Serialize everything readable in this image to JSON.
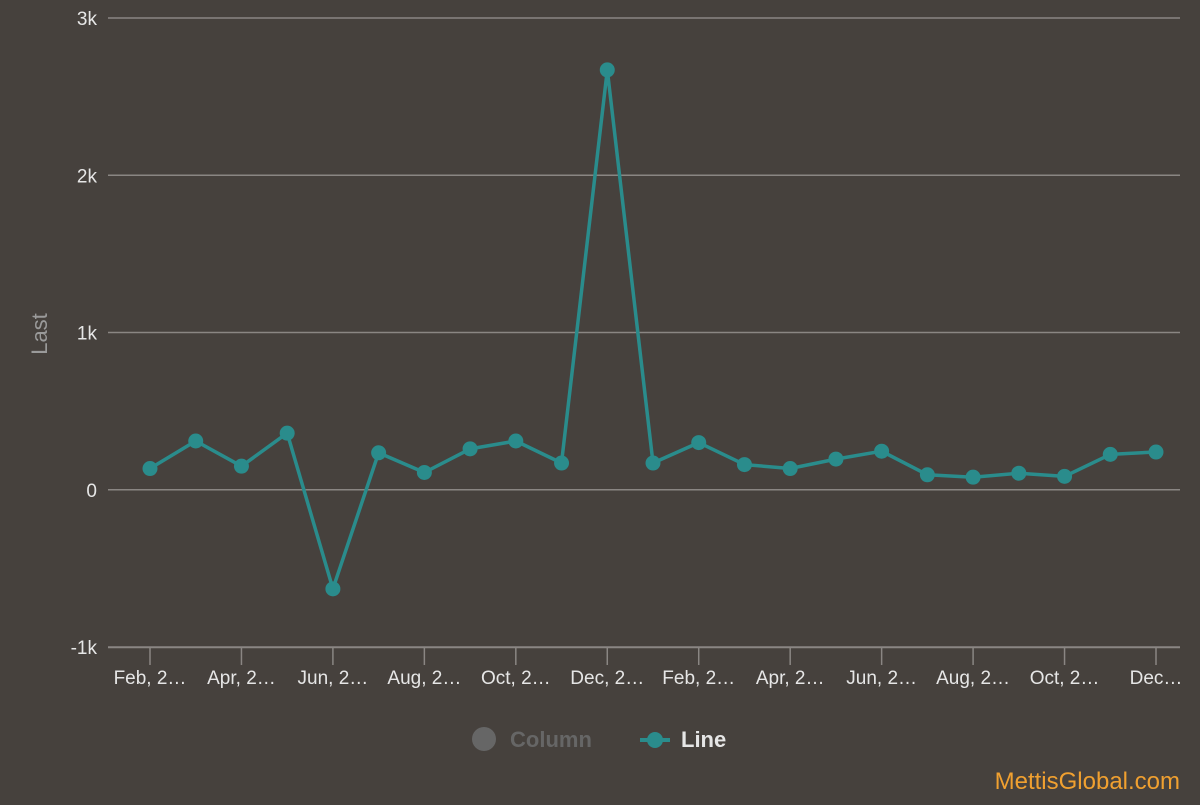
{
  "chart_data": {
    "type": "line",
    "title": "",
    "ylabel": "Last",
    "xlabel": "",
    "ylim": [
      -1000,
      3000
    ],
    "yticks": [
      -1000,
      0,
      1000,
      2000,
      3000
    ],
    "ytick_labels": [
      "-1k",
      "0",
      "1k",
      "2k",
      "3k"
    ],
    "x_tick_labels": [
      "Feb, 2…",
      "Apr, 2…",
      "Jun, 2…",
      "Aug, 2…",
      "Oct, 2…",
      "Dec, 2…",
      "Feb, 2…",
      "Apr, 2…",
      "Jun, 2…",
      "Aug, 2…",
      "Oct, 2…",
      "Dec…"
    ],
    "grid": true,
    "legend_position": "bottom-center",
    "series": [
      {
        "name": "Line",
        "color": "#2a8c8c",
        "values": [
          135,
          310,
          150,
          360,
          -630,
          235,
          110,
          260,
          310,
          170,
          2670,
          170,
          300,
          160,
          135,
          195,
          245,
          95,
          80,
          105,
          85,
          225,
          240
        ]
      }
    ],
    "legend": [
      {
        "label": "Column",
        "color": "#666666",
        "active": false
      },
      {
        "label": "Line",
        "color": "#2a8c8c",
        "active": true
      }
    ]
  },
  "watermark": "MettisGlobal.com"
}
